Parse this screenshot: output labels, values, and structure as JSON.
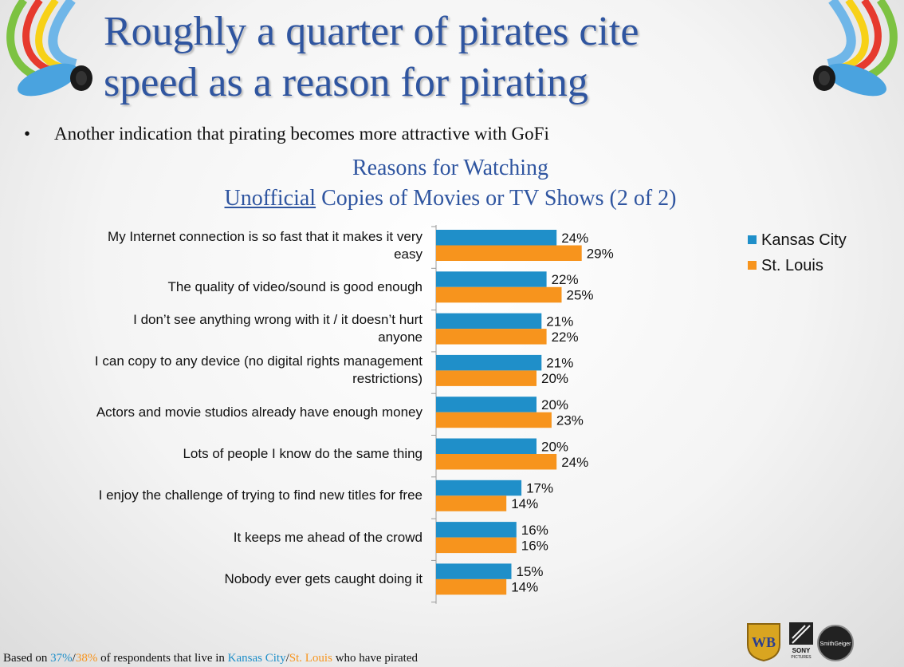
{
  "slide": {
    "title_line1": "Roughly a quarter of pirates cite",
    "title_line2": "speed as a reason for pirating",
    "bullet_symbol": "•",
    "bullet": "Another indication that pirating becomes more attractive with GoFi"
  },
  "chart_title": {
    "line1": "Reasons for Watching",
    "line2_underlined": "Unofficial",
    "line2_rest": " Copies of Movies or TV Shows (2 of 2)"
  },
  "chart_data": {
    "type": "bar",
    "orientation": "horizontal",
    "title": "Reasons for Watching Unofficial Copies of Movies or TV Shows (2 of 2)",
    "categories": [
      "My Internet connection is so fast that it makes it very easy",
      "The quality of video/sound is good enough",
      "I don’t see anything wrong with it / it doesn’t hurt anyone",
      "I can copy to any device (no digital rights management restrictions)",
      "Actors and movie studios already have enough money",
      "Lots of people I know do the same thing",
      "I enjoy the challenge of trying to find new titles for free",
      "It keeps me ahead of the crowd",
      "Nobody ever gets caught doing it"
    ],
    "category_lines": [
      [
        "My Internet connection is so fast that it makes it very",
        "easy"
      ],
      [
        "The quality of video/sound is good enough"
      ],
      [
        "I don’t see anything wrong with it / it doesn’t hurt",
        "anyone"
      ],
      [
        "I can copy to any device (no digital rights management",
        "restrictions)"
      ],
      [
        "Actors and movie studios already have enough money"
      ],
      [
        "Lots of people I know do the same thing"
      ],
      [
        "I enjoy the challenge of trying to find new titles for free"
      ],
      [
        "It keeps me ahead of the crowd"
      ],
      [
        "Nobody ever gets caught doing it"
      ]
    ],
    "series": [
      {
        "name": "Kansas City",
        "color": "#1f8fc9",
        "values": [
          24,
          22,
          21,
          21,
          20,
          20,
          17,
          16,
          15
        ]
      },
      {
        "name": "St. Louis",
        "color": "#f7941d",
        "values": [
          29,
          25,
          22,
          20,
          23,
          24,
          14,
          16,
          14
        ]
      }
    ],
    "value_suffix": "%",
    "xlim": [
      0,
      100
    ],
    "legend_position": "top-right",
    "grid": false
  },
  "footer": {
    "prefix": "Based on ",
    "kc_pct": "37%",
    "slash1": "/",
    "stl_pct": "38%",
    "middle": " of respondents that live in ",
    "kc_name": "Kansas City",
    "slash2": "/",
    "stl_name": "St. Louis",
    "suffix": " who have pirated"
  },
  "logos": {
    "wb_text": "WB",
    "sony_text": "SONY",
    "sony_sub": "PICTURES",
    "smithgeiger_text": "SmithGeiger"
  },
  "colors": {
    "title": "#2f55a0",
    "kansas_city": "#1f8fc9",
    "st_louis": "#f7941d"
  }
}
